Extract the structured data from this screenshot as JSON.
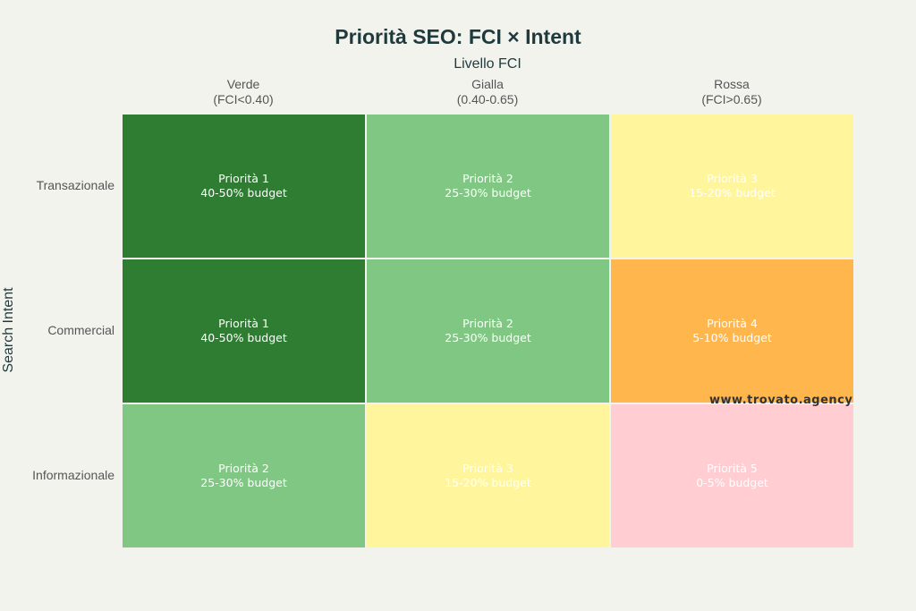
{
  "chart_data": {
    "type": "heatmap",
    "title": "Priorità SEO: FCI × Intent",
    "xlabel": "Livello FCI",
    "ylabel": "Search Intent",
    "x_categories": [
      "Verde\n(FCI<0.40)",
      "Gialla\n(0.40-0.65)",
      "Rossa\n(FCI>0.65)"
    ],
    "x_tick_lines": [
      [
        "Verde",
        "(FCI<0.40)"
      ],
      [
        "Gialla",
        "(0.40-0.65)"
      ],
      [
        "Rossa",
        "(FCI>0.65)"
      ]
    ],
    "y_categories": [
      "Transazionale",
      "Commercial",
      "Informazionale"
    ],
    "values": [
      [
        1,
        2,
        3
      ],
      [
        1,
        2,
        4
      ],
      [
        2,
        3,
        5
      ]
    ],
    "annotations": [
      [
        [
          "Priorità 1",
          "40-50% budget"
        ],
        [
          "Priorità 2",
          "25-30% budget"
        ],
        [
          "Priorità 3",
          "15-20% budget"
        ]
      ],
      [
        [
          "Priorità 1",
          "40-50% budget"
        ],
        [
          "Priorità 2",
          "25-30% budget"
        ],
        [
          "Priorità 4",
          "5-10% budget"
        ]
      ],
      [
        [
          "Priorità 2",
          "25-30% budget"
        ],
        [
          "Priorità 3",
          "15-20% budget"
        ],
        [
          "Priorità 5",
          "0-5% budget"
        ]
      ]
    ],
    "colorscale": {
      "1": "#2e7d32",
      "2": "#81c784",
      "3": "#fff59d",
      "4": "#ffb74d",
      "5": "#ffcdd2"
    },
    "watermark": "www.trovato.agency"
  }
}
